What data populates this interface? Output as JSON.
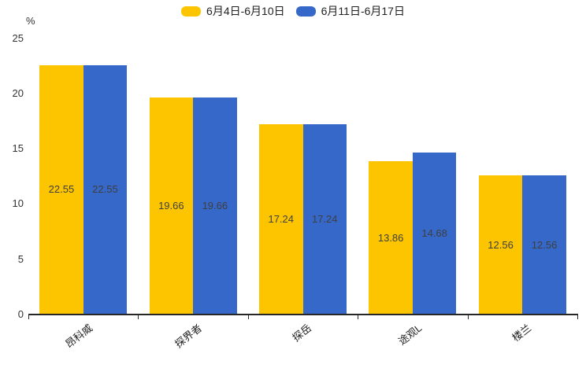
{
  "chart_data": {
    "type": "bar",
    "title": "",
    "unit_label": "%",
    "categories": [
      "昂科威",
      "探界者",
      "探岳",
      "途观L",
      "楼兰"
    ],
    "series": [
      {
        "name": "6月4日-6月10日",
        "color": "#FDC500",
        "values": [
          22.55,
          19.66,
          17.24,
          13.86,
          12.56
        ]
      },
      {
        "name": "6月11日-6月17日",
        "color": "#3568C8",
        "values": [
          22.55,
          19.66,
          17.24,
          14.68,
          12.56
        ]
      }
    ],
    "ylim": [
      0,
      25
    ],
    "yticks": [
      0,
      5,
      10,
      15,
      20,
      25
    ],
    "legend_position": "top-center",
    "grid": false,
    "value_labels": "inside-center",
    "value_label_color": "#3f3f3f",
    "axis_color": "#262626"
  }
}
